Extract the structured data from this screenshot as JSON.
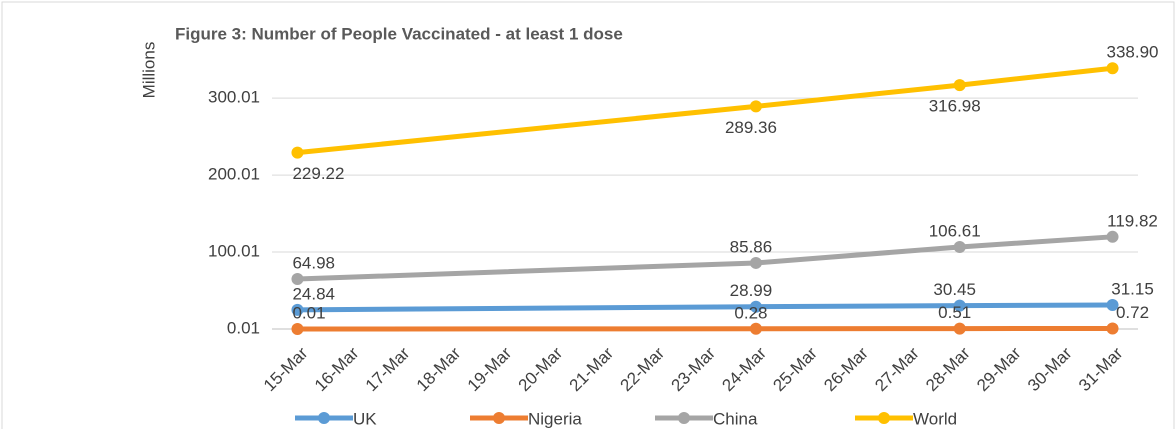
{
  "chart_data": {
    "type": "line",
    "title": "Figure 3: Number of People Vaccinated - at least 1 dose",
    "y_label": "Millions",
    "xticks": [
      "15-Mar",
      "16-Mar",
      "17-Mar",
      "18-Mar",
      "19-Mar",
      "20-Mar",
      "21-Mar",
      "22-Mar",
      "23-Mar",
      "24-Mar",
      "25-Mar",
      "26-Mar",
      "27-Mar",
      "28-Mar",
      "29-Mar",
      "30-Mar",
      "31-Mar"
    ],
    "x": [
      "15-Mar",
      "24-Mar",
      "28-Mar",
      "31-Mar"
    ],
    "ylim": [
      0.01,
      360
    ],
    "yticks": [
      0.01,
      100.01,
      200.01,
      300.01
    ],
    "grid": true,
    "legend": "bottom",
    "series": [
      {
        "name": "UK",
        "color": "#5b9bd5",
        "values": [
          24.84,
          28.99,
          30.45,
          31.15
        ]
      },
      {
        "name": "Nigeria",
        "color": "#ed7d31",
        "values": [
          0.01,
          0.28,
          0.51,
          0.72
        ]
      },
      {
        "name": "China",
        "color": "#a5a5a5",
        "values": [
          64.98,
          85.86,
          106.61,
          119.82
        ]
      },
      {
        "name": "World",
        "color": "#ffc000",
        "values": [
          229.22,
          289.36,
          316.98,
          338.9
        ],
        "value_labels": [
          "229.22",
          "289.36",
          "316.98",
          "338.90"
        ]
      }
    ]
  }
}
